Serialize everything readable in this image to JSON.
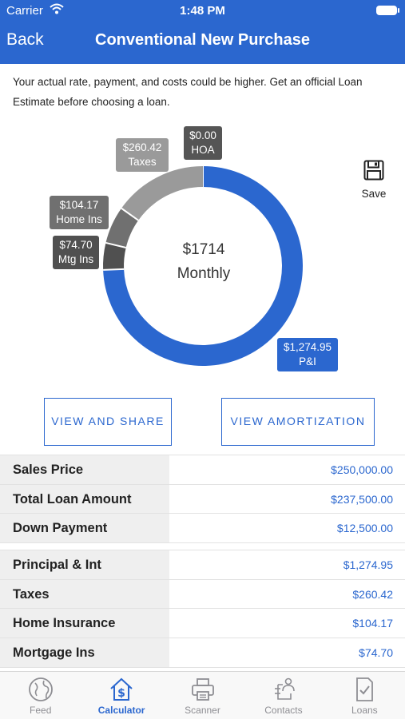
{
  "status": {
    "carrier": "Carrier",
    "time": "1:48 PM"
  },
  "nav": {
    "back": "Back",
    "title": "Conventional New Purchase"
  },
  "disclaimer": "Your actual rate, payment, and costs could be higher. Get an official Loan Estimate before choosing a loan.",
  "chart_data": {
    "type": "pie",
    "title": "",
    "center_amount": "$1714",
    "center_label": "Monthly",
    "slices": [
      {
        "name": "P&I",
        "value": 1274.95,
        "label": "$1,274.95",
        "color": "#2b67cf"
      },
      {
        "name": "Mtg Ins",
        "value": 74.7,
        "label": "$74.70",
        "color": "#505050"
      },
      {
        "name": "Home Ins",
        "value": 104.17,
        "label": "$104.17",
        "color": "#707070"
      },
      {
        "name": "Taxes",
        "value": 260.42,
        "label": "$260.42",
        "color": "#9a9a9a"
      },
      {
        "name": "HOA",
        "value": 0.0,
        "label": "$0.00",
        "color": "#555555"
      }
    ]
  },
  "save_label": "Save",
  "buttons": {
    "share": "VIEW AND SHARE",
    "amortization": "VIEW AMORTIZATION"
  },
  "loan_summary": [
    {
      "label": "Sales Price",
      "value": "$250,000.00"
    },
    {
      "label": "Total Loan Amount",
      "value": "$237,500.00"
    },
    {
      "label": "Down Payment",
      "value": "$12,500.00"
    }
  ],
  "payment_breakdown": [
    {
      "label": "Principal & Int",
      "value": "$1,274.95"
    },
    {
      "label": "Taxes",
      "value": "$260.42"
    },
    {
      "label": "Home Insurance",
      "value": "$104.17"
    },
    {
      "label": "Mortgage Ins",
      "value": "$74.70"
    }
  ],
  "tabs": [
    {
      "label": "Feed",
      "icon": "globe-icon"
    },
    {
      "label": "Calculator",
      "icon": "calculator-house-icon",
      "active": true
    },
    {
      "label": "Scanner",
      "icon": "printer-icon"
    },
    {
      "label": "Contacts",
      "icon": "contacts-icon"
    },
    {
      "label": "Loans",
      "icon": "document-check-icon"
    }
  ]
}
